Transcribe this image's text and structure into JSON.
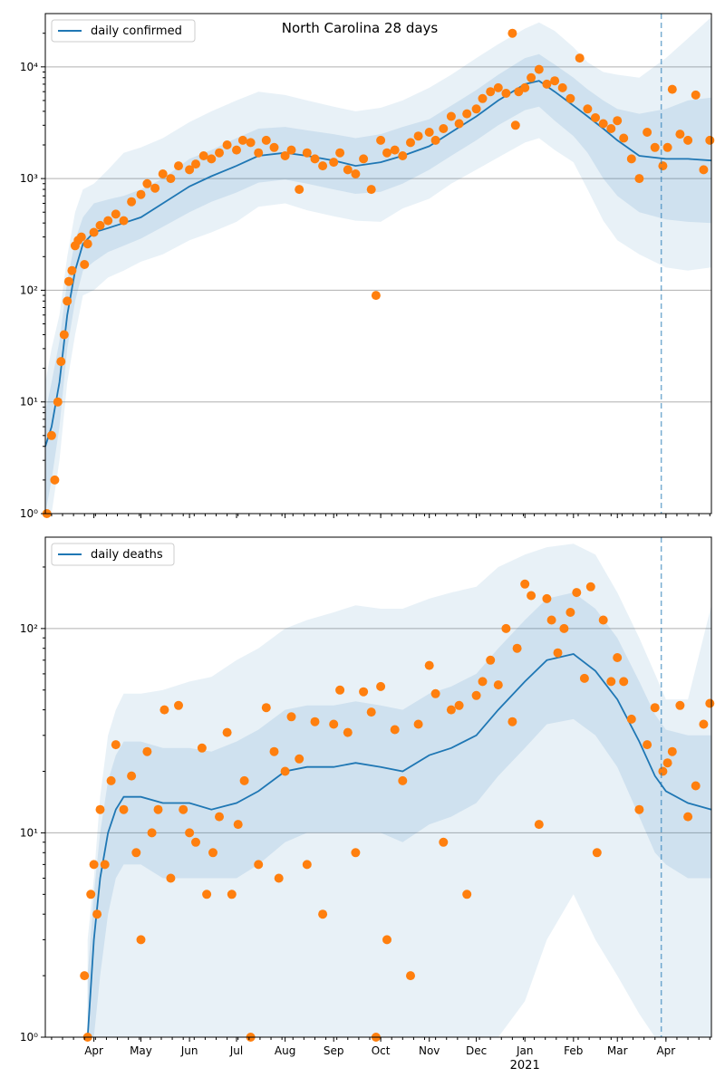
{
  "chart_data": [
    {
      "type": "line",
      "title": "North Carolina 28 days",
      "xlabel": "",
      "ylabel": "",
      "yscale": "log",
      "ylim": [
        1,
        30000
      ],
      "xlim": [
        "2020-03-01",
        "2021-04-30"
      ],
      "x_ticks": [
        {
          "date": "2020-04-01",
          "label": "Apr"
        },
        {
          "date": "2020-05-01",
          "label": "May"
        },
        {
          "date": "2020-06-01",
          "label": "Jun"
        },
        {
          "date": "2020-07-01",
          "label": "Jul"
        },
        {
          "date": "2020-08-01",
          "label": "Aug"
        },
        {
          "date": "2020-09-01",
          "label": "Sep"
        },
        {
          "date": "2020-10-01",
          "label": "Oct"
        },
        {
          "date": "2020-11-01",
          "label": "Nov"
        },
        {
          "date": "2020-12-01",
          "label": "Dec"
        },
        {
          "date": "2021-01-01",
          "label": "Jan"
        },
        {
          "date": "2021-02-01",
          "label": "Feb"
        },
        {
          "date": "2021-03-01",
          "label": "Mar"
        },
        {
          "date": "2021-04-01",
          "label": "Apr"
        }
      ],
      "year_label": {
        "date": "2021-01-01",
        "label": "2021"
      },
      "y_ticks": [
        {
          "value": 1,
          "label": "10⁰"
        },
        {
          "value": 10,
          "label": "10¹"
        },
        {
          "value": 100,
          "label": "10²"
        },
        {
          "value": 1000,
          "label": "10³"
        },
        {
          "value": 10000,
          "label": "10⁴"
        }
      ],
      "grid": "horizontal",
      "legend_position": "top-left",
      "forecast_start": "2021-03-29",
      "series": [
        {
          "name": "daily confirmed",
          "color": "#1f77b4",
          "x": [
            "2020-03-01",
            "2020-03-05",
            "2020-03-10",
            "2020-03-15",
            "2020-03-20",
            "2020-03-25",
            "2020-04-01",
            "2020-04-10",
            "2020-04-20",
            "2020-05-01",
            "2020-05-15",
            "2020-06-01",
            "2020-06-15",
            "2020-07-01",
            "2020-07-15",
            "2020-08-01",
            "2020-08-15",
            "2020-09-01",
            "2020-09-15",
            "2020-10-01",
            "2020-10-15",
            "2020-11-01",
            "2020-11-15",
            "2020-12-01",
            "2020-12-15",
            "2021-01-01",
            "2021-01-10",
            "2021-01-20",
            "2021-02-01",
            "2021-02-10",
            "2021-02-20",
            "2021-03-01",
            "2021-03-15",
            "2021-04-01",
            "2021-04-15",
            "2021-04-30"
          ],
          "values": [
            4,
            6,
            15,
            60,
            150,
            260,
            330,
            360,
            400,
            450,
            600,
            850,
            1050,
            1300,
            1600,
            1700,
            1600,
            1450,
            1300,
            1400,
            1600,
            1950,
            2600,
            3600,
            5000,
            7000,
            7500,
            6000,
            4500,
            3600,
            2800,
            2200,
            1600,
            1500,
            1500,
            1450
          ]
        }
      ],
      "observed": {
        "color": "#ff7f0e",
        "x": [
          "2020-03-02",
          "2020-03-05",
          "2020-03-07",
          "2020-03-09",
          "2020-03-11",
          "2020-03-13",
          "2020-03-15",
          "2020-03-16",
          "2020-03-18",
          "2020-03-20",
          "2020-03-22",
          "2020-03-24",
          "2020-03-26",
          "2020-03-28",
          "2020-04-01",
          "2020-04-05",
          "2020-04-10",
          "2020-04-15",
          "2020-04-20",
          "2020-04-25",
          "2020-05-01",
          "2020-05-05",
          "2020-05-10",
          "2020-05-15",
          "2020-05-20",
          "2020-05-25",
          "2020-06-01",
          "2020-06-05",
          "2020-06-10",
          "2020-06-15",
          "2020-06-20",
          "2020-06-25",
          "2020-07-01",
          "2020-07-05",
          "2020-07-10",
          "2020-07-15",
          "2020-07-20",
          "2020-07-25",
          "2020-08-01",
          "2020-08-05",
          "2020-08-10",
          "2020-08-15",
          "2020-08-20",
          "2020-08-25",
          "2020-09-01",
          "2020-09-05",
          "2020-09-10",
          "2020-09-15",
          "2020-09-20",
          "2020-09-25",
          "2020-09-28",
          "2020-10-01",
          "2020-10-05",
          "2020-10-10",
          "2020-10-15",
          "2020-10-20",
          "2020-10-25",
          "2020-11-01",
          "2020-11-05",
          "2020-11-10",
          "2020-11-15",
          "2020-11-20",
          "2020-11-25",
          "2020-12-01",
          "2020-12-05",
          "2020-12-10",
          "2020-12-15",
          "2020-12-20",
          "2020-12-24",
          "2020-12-26",
          "2020-12-28",
          "2021-01-01",
          "2021-01-05",
          "2021-01-10",
          "2021-01-15",
          "2021-01-20",
          "2021-01-25",
          "2021-01-30",
          "2021-02-05",
          "2021-02-10",
          "2021-02-15",
          "2021-02-20",
          "2021-02-25",
          "2021-03-01",
          "2021-03-05",
          "2021-03-10",
          "2021-03-15",
          "2021-03-20",
          "2021-03-25",
          "2021-03-30",
          "2021-04-02",
          "2021-04-05",
          "2021-04-10",
          "2021-04-15",
          "2021-04-20",
          "2021-04-25",
          "2021-04-29"
        ],
        "values": [
          1,
          5,
          2,
          10,
          23,
          40,
          80,
          120,
          150,
          250,
          280,
          300,
          170,
          260,
          330,
          380,
          420,
          480,
          420,
          620,
          720,
          900,
          820,
          1100,
          1000,
          1300,
          1200,
          1350,
          1600,
          1500,
          1700,
          2000,
          1800,
          2200,
          2100,
          1700,
          2200,
          1900,
          1600,
          1800,
          800,
          1700,
          1500,
          1300,
          1400,
          1700,
          1200,
          1100,
          1500,
          800,
          90,
          2200,
          1700,
          1800,
          1600,
          2100,
          2400,
          2600,
          2200,
          2800,
          3600,
          3100,
          3800,
          4200,
          5200,
          6000,
          6500,
          5800,
          20000,
          3000,
          6000,
          6500,
          8000,
          9500,
          7000,
          7500,
          6500,
          5200,
          12000,
          4200,
          3500,
          3100,
          2800,
          3300,
          2300,
          1500,
          1000,
          2600,
          1900,
          1300,
          1900,
          6300,
          2500,
          2200,
          5600,
          1200,
          2200
        ]
      },
      "bands": [
        {
          "color": "#1f77b4",
          "opacity": 0.1,
          "lower": [
            1,
            1,
            3,
            15,
            40,
            90,
            100,
            130,
            150,
            180,
            210,
            280,
            330,
            410,
            560,
            600,
            520,
            460,
            420,
            410,
            540,
            660,
            900,
            1200,
            1550,
            2100,
            2300,
            1800,
            1400,
            800,
            420,
            280,
            210,
            160,
            150,
            160
          ],
          "upper": [
            15,
            30,
            60,
            200,
            500,
            800,
            900,
            1200,
            1700,
            1900,
            2300,
            3200,
            4000,
            5000,
            6000,
            5600,
            5000,
            4400,
            4000,
            4300,
            5000,
            6500,
            8500,
            12000,
            16000,
            22000,
            25000,
            21000,
            15000,
            11000,
            9000,
            8500,
            8000,
            12000,
            18000,
            28000
          ]
        },
        {
          "color": "#1f77b4",
          "opacity": 0.12,
          "lower": [
            1,
            2,
            6,
            30,
            80,
            150,
            180,
            220,
            250,
            290,
            370,
            500,
            620,
            750,
            920,
            980,
            900,
            800,
            730,
            760,
            900,
            1200,
            1600,
            2200,
            3000,
            4100,
            4400,
            3300,
            2400,
            1700,
            1000,
            700,
            500,
            430,
            410,
            400
          ],
          "upper": [
            8,
            15,
            35,
            120,
            280,
            450,
            600,
            650,
            700,
            800,
            1000,
            1500,
            1800,
            2300,
            2800,
            2900,
            2700,
            2500,
            2300,
            2500,
            2900,
            3400,
            4500,
            6200,
            8500,
            12000,
            13000,
            10500,
            8000,
            6300,
            5000,
            4200,
            3800,
            4200,
            5000,
            5300
          ]
        }
      ]
    },
    {
      "type": "line",
      "title": "",
      "xlabel": "",
      "ylabel": "",
      "yscale": "log",
      "ylim": [
        1,
        280
      ],
      "xlim": [
        "2020-03-01",
        "2021-04-30"
      ],
      "x_ticks": [
        {
          "date": "2020-04-01",
          "label": "Apr"
        },
        {
          "date": "2020-05-01",
          "label": "May"
        },
        {
          "date": "2020-06-01",
          "label": "Jun"
        },
        {
          "date": "2020-07-01",
          "label": "Jul"
        },
        {
          "date": "2020-08-01",
          "label": "Aug"
        },
        {
          "date": "2020-09-01",
          "label": "Sep"
        },
        {
          "date": "2020-10-01",
          "label": "Oct"
        },
        {
          "date": "2020-11-01",
          "label": "Nov"
        },
        {
          "date": "2020-12-01",
          "label": "Dec"
        },
        {
          "date": "2021-01-01",
          "label": "Jan"
        },
        {
          "date": "2021-02-01",
          "label": "Feb"
        },
        {
          "date": "2021-03-01",
          "label": "Mar"
        },
        {
          "date": "2021-04-01",
          "label": "Apr"
        }
      ],
      "year_label": {
        "date": "2021-01-01",
        "label": "2021"
      },
      "y_ticks": [
        {
          "value": 1,
          "label": "10⁰"
        },
        {
          "value": 10,
          "label": "10¹"
        },
        {
          "value": 100,
          "label": "10²"
        }
      ],
      "grid": "horizontal",
      "legend_position": "top-left",
      "forecast_start": "2021-03-29",
      "series": [
        {
          "name": "daily deaths",
          "color": "#1f77b4",
          "x": [
            "2020-03-28",
            "2020-04-01",
            "2020-04-05",
            "2020-04-10",
            "2020-04-15",
            "2020-04-20",
            "2020-05-01",
            "2020-05-15",
            "2020-06-01",
            "2020-06-15",
            "2020-07-01",
            "2020-07-15",
            "2020-08-01",
            "2020-08-15",
            "2020-09-01",
            "2020-09-15",
            "2020-10-01",
            "2020-10-15",
            "2020-11-01",
            "2020-11-15",
            "2020-12-01",
            "2020-12-15",
            "2021-01-01",
            "2021-01-15",
            "2021-02-01",
            "2021-02-15",
            "2021-03-01",
            "2021-03-15",
            "2021-03-25",
            "2021-04-01",
            "2021-04-15",
            "2021-04-30"
          ],
          "values": [
            1,
            3,
            6,
            10,
            13,
            15,
            15,
            14,
            14,
            13,
            14,
            16,
            20,
            21,
            21,
            22,
            21,
            20,
            24,
            26,
            30,
            40,
            55,
            70,
            75,
            62,
            45,
            28,
            19,
            16,
            14,
            13
          ]
        }
      ],
      "observed": {
        "color": "#ff7f0e",
        "x": [
          "2020-03-26",
          "2020-03-28",
          "2020-03-30",
          "2020-04-01",
          "2020-04-03",
          "2020-04-05",
          "2020-04-08",
          "2020-04-12",
          "2020-04-15",
          "2020-04-20",
          "2020-04-25",
          "2020-04-28",
          "2020-05-01",
          "2020-05-05",
          "2020-05-08",
          "2020-05-12",
          "2020-05-16",
          "2020-05-20",
          "2020-05-25",
          "2020-05-28",
          "2020-06-01",
          "2020-06-05",
          "2020-06-09",
          "2020-06-12",
          "2020-06-16",
          "2020-06-20",
          "2020-06-25",
          "2020-06-28",
          "2020-07-02",
          "2020-07-06",
          "2020-07-10",
          "2020-07-15",
          "2020-07-20",
          "2020-07-25",
          "2020-07-28",
          "2020-08-01",
          "2020-08-05",
          "2020-08-10",
          "2020-08-15",
          "2020-08-20",
          "2020-08-25",
          "2020-09-01",
          "2020-09-05",
          "2020-09-10",
          "2020-09-15",
          "2020-09-20",
          "2020-09-25",
          "2020-09-28",
          "2020-10-01",
          "2020-10-05",
          "2020-10-10",
          "2020-10-15",
          "2020-10-20",
          "2020-10-25",
          "2020-11-01",
          "2020-11-05",
          "2020-11-10",
          "2020-11-15",
          "2020-11-20",
          "2020-11-25",
          "2020-12-01",
          "2020-12-05",
          "2020-12-10",
          "2020-12-15",
          "2020-12-20",
          "2020-12-24",
          "2020-12-27",
          "2021-01-01",
          "2021-01-05",
          "2021-01-10",
          "2021-01-15",
          "2021-01-18",
          "2021-01-22",
          "2021-01-26",
          "2021-01-30",
          "2021-02-03",
          "2021-02-08",
          "2021-02-12",
          "2021-02-16",
          "2021-02-20",
          "2021-02-25",
          "2021-03-01",
          "2021-03-05",
          "2021-03-10",
          "2021-03-15",
          "2021-03-20",
          "2021-03-25",
          "2021-03-30",
          "2021-04-02",
          "2021-04-05",
          "2021-04-10",
          "2021-04-15",
          "2021-04-20",
          "2021-04-25",
          "2021-04-29"
        ],
        "values": [
          2,
          1,
          5,
          7,
          4,
          13,
          7,
          18,
          27,
          13,
          19,
          8,
          3,
          25,
          10,
          13,
          40,
          6,
          42,
          13,
          10,
          9,
          26,
          5,
          8,
          12,
          31,
          5,
          11,
          18,
          1,
          7,
          41,
          25,
          6,
          20,
          37,
          23,
          7,
          35,
          4,
          34,
          50,
          31,
          8,
          49,
          39,
          1,
          52,
          3,
          32,
          18,
          2,
          34,
          66,
          48,
          9,
          40,
          42,
          5,
          47,
          55,
          70,
          53,
          100,
          35,
          80,
          165,
          145,
          11,
          140,
          110,
          76,
          100,
          120,
          150,
          57,
          160,
          8,
          110,
          55,
          72,
          55,
          36,
          13,
          27,
          41,
          20,
          22,
          25,
          42,
          12,
          17,
          34,
          43
        ]
      },
      "bands": [
        {
          "color": "#1f77b4",
          "opacity": 0.1,
          "lower": [
            1,
            1,
            1,
            1,
            1,
            1,
            1,
            1,
            1,
            1,
            1,
            1,
            1,
            1,
            1,
            1,
            1,
            1,
            1,
            1,
            1,
            1,
            1.5,
            3,
            5,
            3,
            2,
            1.3,
            1,
            1,
            1,
            1
          ],
          "upper": [
            3,
            6,
            15,
            30,
            40,
            48,
            48,
            50,
            55,
            58,
            70,
            80,
            100,
            110,
            120,
            130,
            125,
            125,
            140,
            150,
            160,
            200,
            230,
            250,
            260,
            230,
            150,
            90,
            60,
            45,
            45,
            130
          ]
        },
        {
          "color": "#1f77b4",
          "opacity": 0.12,
          "lower": [
            1,
            1,
            2,
            4,
            6,
            7,
            7,
            6,
            6,
            6,
            6,
            7,
            9,
            10,
            10,
            10,
            10,
            9,
            11,
            12,
            14,
            19,
            26,
            34,
            36,
            30,
            21,
            12,
            8,
            7,
            6,
            6
          ],
          "upper": [
            2,
            5,
            10,
            18,
            24,
            28,
            28,
            26,
            26,
            25,
            28,
            32,
            40,
            42,
            42,
            44,
            42,
            40,
            48,
            52,
            60,
            80,
            110,
            140,
            150,
            125,
            90,
            55,
            38,
            32,
            30,
            30
          ]
        }
      ]
    }
  ]
}
